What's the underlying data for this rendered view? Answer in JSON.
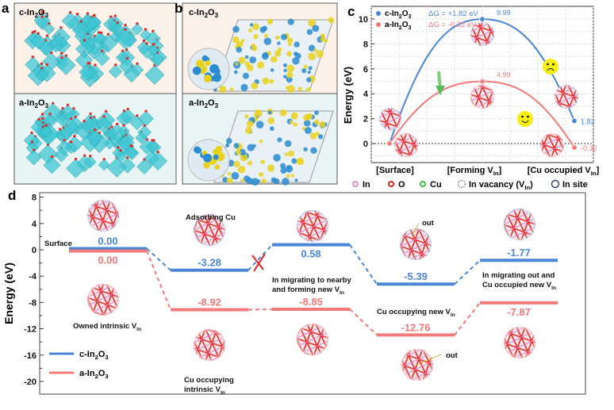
{
  "panels": {
    "a": {
      "letter": "a",
      "top_label": "c-In",
      "top_sub1": "2",
      "top_mid": "O",
      "top_sub2": "3",
      "bottom_label": "a-In",
      "bottom_sub1": "2",
      "bottom_mid": "O",
      "bottom_sub2": "3"
    },
    "b": {
      "letter": "b",
      "top_label": "c-In",
      "top_sub1": "2",
      "top_mid": "O",
      "top_sub2": "3",
      "bottom_label": "a-In",
      "bottom_sub1": "2",
      "bottom_mid": "O",
      "bottom_sub2": "3"
    },
    "c": {
      "letter": "c"
    },
    "d": {
      "letter": "d"
    }
  },
  "legend_atoms": {
    "items": [
      {
        "label": "In",
        "color": "#d98fc8"
      },
      {
        "label": "O",
        "color": "#e8221e"
      },
      {
        "label": "Cu",
        "color": "#3cc43c"
      },
      {
        "label": "In vacancy (V",
        "sub": "In",
        "tail": ")"
      },
      {
        "label": "In site"
      }
    ]
  },
  "colors": {
    "c_In2O3": "#4a86d8",
    "a_In2O3": "#f37a7a",
    "panel_top_bg": "#fdf2ea",
    "panel_bottom_bg": "#e8f5f4",
    "polyhedra": "#3fc6d3",
    "annotation_out": "#b8a800"
  },
  "chart_data": [
    {
      "type": "line",
      "panel": "c",
      "ylabel": "Energy (eV)",
      "ylim": [
        -1.5,
        10.8
      ],
      "yticks": [
        0,
        2,
        4,
        6,
        8,
        10
      ],
      "grid": true,
      "legend_placement": "top-left",
      "categories": [
        {
          "text": "[Surface]",
          "sub": "",
          "tail": ""
        },
        {
          "text": "[Forming V",
          "sub": "In",
          "tail": "]"
        },
        {
          "text": "[Cu occupied V",
          "sub": "In",
          "tail": "]"
        }
      ],
      "series": [
        {
          "name": "c-In2O3",
          "name_main": "c-In",
          "name_s1": "2",
          "name_mid": "O",
          "name_s2": "3",
          "delta": "ΔG = +1.82 eV",
          "color": "#4a86d8",
          "values": [
            0,
            9.99,
            1.82
          ],
          "labels": [
            "",
            "9.99",
            "1.82"
          ]
        },
        {
          "name": "a-In2O3",
          "name_main": "a-In",
          "name_s1": "2",
          "name_mid": "O",
          "name_s2": "3",
          "delta": "ΔG = -0.32 eV",
          "color": "#f37a7a",
          "values": [
            0,
            4.99,
            -0.32
          ],
          "labels": [
            "",
            "4.99",
            "-0.32"
          ]
        }
      ]
    },
    {
      "type": "line",
      "subtype": "energy-level-diagram",
      "panel": "d",
      "ylabel": "Energy (eV)",
      "ylim": [
        -21,
        10
      ],
      "yticks": [
        8,
        4,
        0,
        -4,
        -8,
        -12,
        -16,
        -20
      ],
      "legend_placement": "bottom-left",
      "series": [
        {
          "name": "c-In2O3",
          "name_main": "c-In",
          "name_s1": "2",
          "name_mid": "O",
          "name_s2": "3",
          "color": "#4a86d8",
          "values": [
            0.0,
            -3.28,
            0.58,
            -5.39,
            -1.77
          ],
          "labels": [
            "0.00",
            "-3.28",
            "0.58",
            "-5.39",
            "-1.77"
          ]
        },
        {
          "name": "a-In2O3",
          "name_main": "a-In",
          "name_s1": "2",
          "name_mid": "O",
          "name_s2": "3",
          "color": "#f37a7a",
          "values": [
            0.0,
            -8.92,
            -8.85,
            -12.76,
            -7.87
          ],
          "labels": [
            "0.00",
            "-8.92",
            "-8.85",
            "-12.76",
            "-7.87"
          ]
        }
      ],
      "annotations": {
        "surface": "Surface",
        "owned": "Owned intrinsic V",
        "adsorbing": "Adsorbing Cu",
        "cu_intrinsic_1": "Cu occupying",
        "cu_intrinsic_2": "intrinsic V",
        "migrating_1": "In migrating to nearby",
        "migrating_2": "and forming new V",
        "cu_new": "Cu occupying new V",
        "out_1": "out",
        "out_2": "out",
        "migrating_out_1": "In migrating out and",
        "migrating_out_2": "Cu occupied new V",
        "sub": "In"
      }
    }
  ]
}
